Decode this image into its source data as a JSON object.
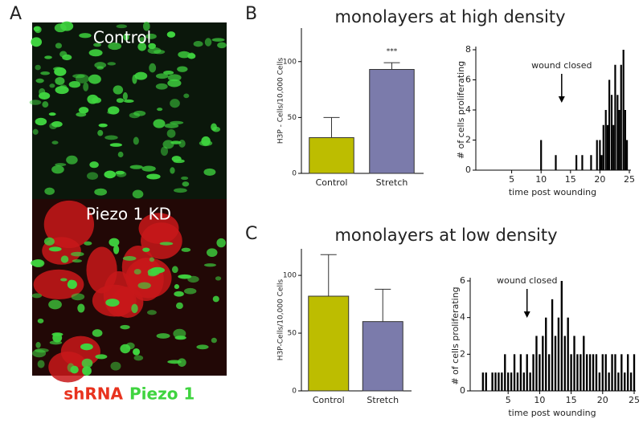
{
  "panels": {
    "A": {
      "letter": "A",
      "top_label": "Control",
      "bottom_label": "Piezo 1 KD",
      "caption_red": "shRNA",
      "caption_green": "Piezo 1"
    },
    "B": {
      "letter": "B",
      "title": "monolayers at high density"
    },
    "C": {
      "letter": "C",
      "title": "monolayers at low density"
    }
  },
  "chart_data": [
    {
      "type": "bar",
      "categories": [
        "Control",
        "Stretch"
      ],
      "values": [
        32,
        93
      ],
      "errors": [
        18,
        6
      ],
      "colors": [
        "#bdbd00",
        "#7b7bab"
      ],
      "ylabel": "H3P - Cells/10,000 Cells",
      "ylim": [
        0,
        130
      ],
      "yticks": [
        0,
        50,
        100
      ],
      "annotation": "***"
    },
    {
      "type": "bar",
      "x": [
        10,
        12.5,
        16,
        17,
        18.5,
        19.5,
        20,
        20.3,
        20.6,
        21,
        21.3,
        21.6,
        22,
        22.3,
        22.6,
        23,
        23.3,
        23.6,
        24,
        24.3,
        24.6
      ],
      "values": [
        2,
        1,
        1,
        1,
        1,
        2,
        2,
        1,
        3,
        4,
        3,
        6,
        5,
        3,
        7,
        5,
        4,
        7,
        8,
        4,
        2
      ],
      "color": "#000000",
      "xlabel": "time post wounding",
      "ylabel": "# of cells proliferating",
      "xlim": [
        0,
        25
      ],
      "xticks": [
        5,
        10,
        15,
        20,
        25
      ],
      "ylim": [
        0,
        8
      ],
      "yticks": [
        0,
        2,
        4,
        6,
        8
      ],
      "marker": {
        "text": "wound closed",
        "x": 13.5
      }
    },
    {
      "type": "bar",
      "categories": [
        "Control",
        "Stretch"
      ],
      "values": [
        82,
        60
      ],
      "errors": [
        36,
        28
      ],
      "colors": [
        "#bdbd00",
        "#7b7bab"
      ],
      "ylabel": "H3P-Cells/10,000 Cells",
      "ylim": [
        0,
        123
      ],
      "yticks": [
        0,
        50,
        100
      ]
    },
    {
      "type": "bar",
      "x": [
        1,
        1.5,
        2.5,
        3,
        3.5,
        4,
        4.5,
        5,
        5.5,
        6,
        6.5,
        7,
        7.5,
        8,
        8.5,
        9,
        9.5,
        10,
        10.5,
        11,
        11.5,
        12,
        12.5,
        13,
        13.5,
        14,
        14.5,
        15,
        15.5,
        16,
        16.5,
        17,
        17.5,
        18,
        18.5,
        19,
        19.5,
        20,
        20.5,
        21,
        21.5,
        22,
        22.5,
        23,
        23.5,
        24,
        24.5,
        25
      ],
      "values": [
        1,
        1,
        1,
        1,
        1,
        1,
        2,
        1,
        1,
        2,
        1,
        2,
        1,
        2,
        1,
        2,
        3,
        2,
        3,
        4,
        2,
        5,
        3,
        4,
        6,
        3,
        4,
        2,
        3,
        2,
        2,
        3,
        2,
        2,
        2,
        2,
        1,
        2,
        2,
        1,
        2,
        2,
        1,
        2,
        1,
        2,
        1,
        2
      ],
      "color": "#000000",
      "xlabel": "time post wounding",
      "ylabel": "# of cells proliferating",
      "xlim": [
        0,
        25
      ],
      "xticks": [
        5,
        10,
        15,
        20,
        25
      ],
      "ylim": [
        0,
        6
      ],
      "yticks": [
        0,
        2,
        4,
        6
      ],
      "marker": {
        "text": "wound closed",
        "x": 8
      }
    }
  ]
}
